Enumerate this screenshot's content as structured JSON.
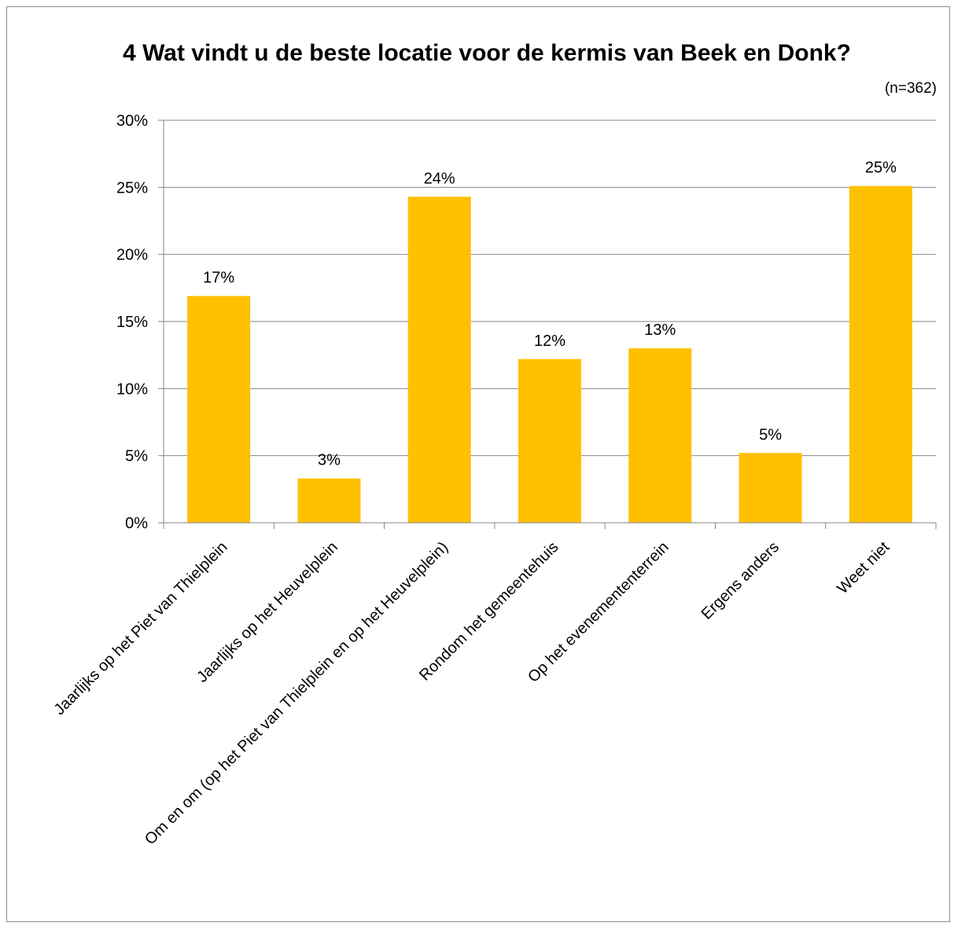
{
  "chart_data": {
    "type": "bar",
    "title": "4 Wat vindt u de beste locatie voor de kermis van Beek en Donk?",
    "note": "(n=362)",
    "xlabel": "",
    "ylabel": "",
    "ylim": [
      0,
      30
    ],
    "y_ticks": [
      "0%",
      "5%",
      "10%",
      "15%",
      "20%",
      "25%",
      "30%"
    ],
    "categories": [
      "Jaarlijks op het Piet van Thielplein",
      "Jaarlijks op het Heuvelplein",
      "Om en om (op het Piet van Thielplein en op het Heuvelplein)",
      "Rondom het gemeentehuis",
      "Op het evenemententerrein",
      "Ergens anders",
      "Weet niet"
    ],
    "values": [
      16.9,
      3.3,
      24.3,
      12.2,
      13.0,
      5.2,
      25.1
    ],
    "data_labels": [
      "17%",
      "3%",
      "24%",
      "12%",
      "13%",
      "5%",
      "25%"
    ],
    "bar_color": "#FFC000",
    "grid": true,
    "legend": "none"
  }
}
